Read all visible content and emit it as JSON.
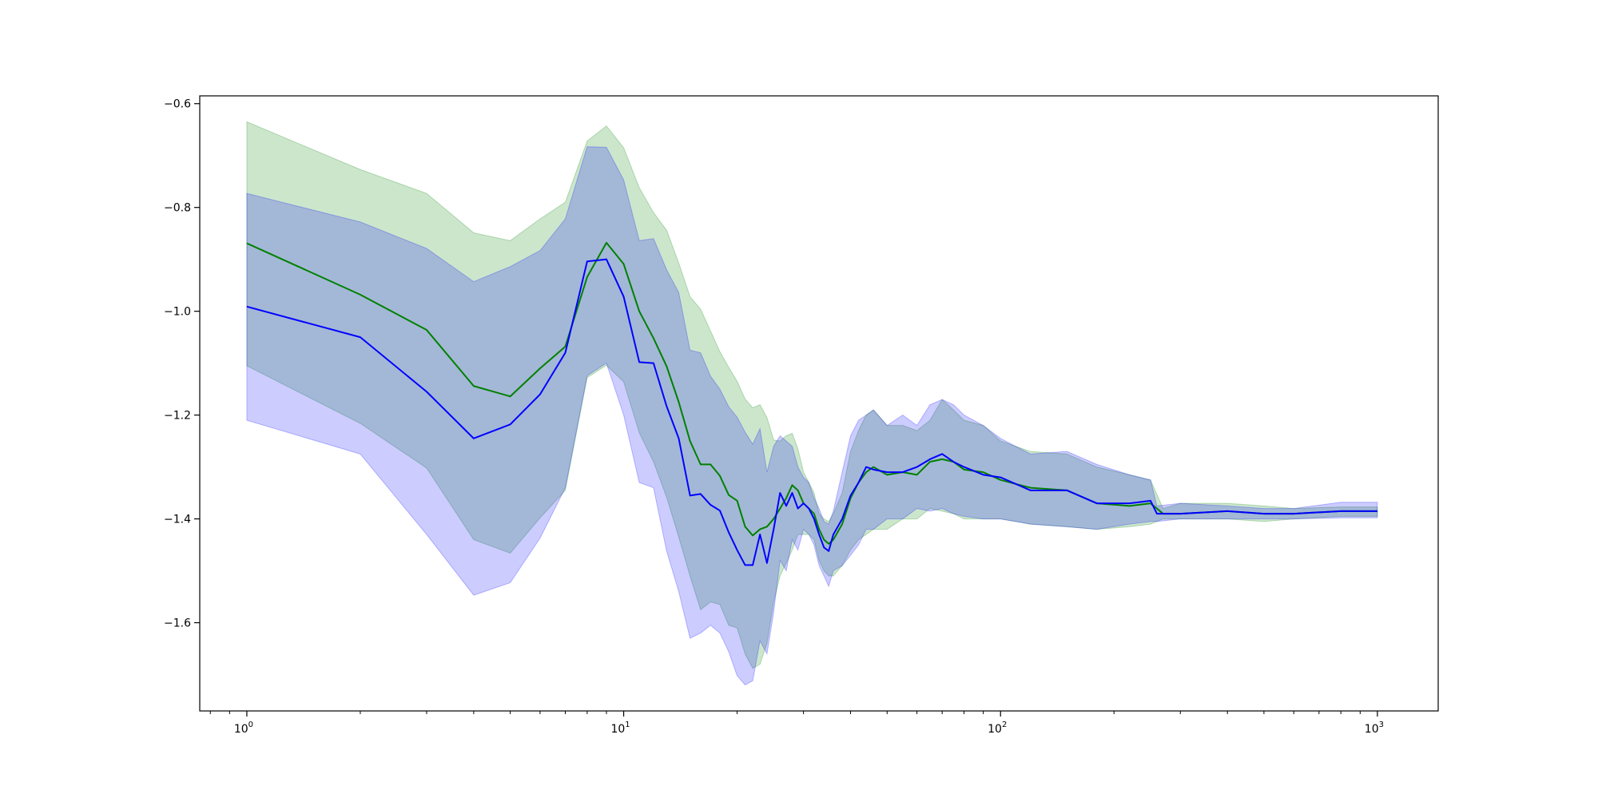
{
  "chart_data": {
    "type": "line",
    "x_scale": "log",
    "xlim": [
      0.75,
      1450
    ],
    "ylim": [
      -1.77,
      -0.585
    ],
    "grid": false,
    "legend": "none",
    "xticks": [
      {
        "value": 1,
        "base": "10",
        "exp": "0"
      },
      {
        "value": 10,
        "base": "10",
        "exp": "1"
      },
      {
        "value": 100,
        "base": "10",
        "exp": "2"
      },
      {
        "value": 1000,
        "base": "10",
        "exp": "3"
      }
    ],
    "yticks": [
      {
        "value": -0.6,
        "label": "−0.6"
      },
      {
        "value": -0.8,
        "label": "−0.8"
      },
      {
        "value": -1.0,
        "label": "−1.0"
      },
      {
        "value": -1.2,
        "label": "−1.2"
      },
      {
        "value": -1.4,
        "label": "−1.4"
      },
      {
        "value": -1.6,
        "label": "−1.6"
      }
    ],
    "series": [
      {
        "color": "#008000",
        "band_color": "#008000",
        "band_opacity": 0.2,
        "points": [
          [
            1,
            -0.869,
            -0.635,
            -1.105
          ],
          [
            2,
            -0.968,
            -0.727,
            -1.216
          ],
          [
            3,
            -1.036,
            -0.773,
            -1.302
          ],
          [
            4,
            -1.144,
            -0.849,
            -1.44
          ],
          [
            5,
            -1.164,
            -0.864,
            -1.466
          ],
          [
            6,
            -1.11,
            -0.822,
            -1.398
          ],
          [
            7,
            -1.068,
            -0.79,
            -1.345
          ],
          [
            8,
            -0.934,
            -0.672,
            -1.128
          ],
          [
            9,
            -0.868,
            -0.643,
            -1.104
          ],
          [
            10,
            -0.909,
            -0.685,
            -1.136
          ],
          [
            11,
            -1.0,
            -0.762,
            -1.234
          ],
          [
            12,
            -1.052,
            -0.81,
            -1.29
          ],
          [
            13,
            -1.106,
            -0.844,
            -1.358
          ],
          [
            14,
            -1.175,
            -0.907,
            -1.435
          ],
          [
            15,
            -1.25,
            -0.972,
            -1.51
          ],
          [
            16,
            -1.295,
            -0.996,
            -1.575
          ],
          [
            17,
            -1.295,
            -1.038,
            -1.56
          ],
          [
            18,
            -1.317,
            -1.078,
            -1.565
          ],
          [
            19,
            -1.354,
            -1.108,
            -1.605
          ],
          [
            20,
            -1.365,
            -1.135,
            -1.61
          ],
          [
            21,
            -1.415,
            -1.169,
            -1.66
          ],
          [
            22,
            -1.432,
            -1.186,
            -1.688
          ],
          [
            23,
            -1.42,
            -1.18,
            -1.68
          ],
          [
            24,
            -1.415,
            -1.205,
            -1.64
          ],
          [
            25,
            -1.4,
            -1.248,
            -1.56
          ],
          [
            26,
            -1.38,
            -1.25,
            -1.51
          ],
          [
            27,
            -1.36,
            -1.24,
            -1.485
          ],
          [
            28,
            -1.335,
            -1.235,
            -1.46
          ],
          [
            29,
            -1.345,
            -1.265,
            -1.43
          ],
          [
            30,
            -1.37,
            -1.31,
            -1.43
          ],
          [
            31,
            -1.38,
            -1.33,
            -1.43
          ],
          [
            32,
            -1.39,
            -1.35,
            -1.44
          ],
          [
            33,
            -1.42,
            -1.39,
            -1.48
          ],
          [
            34,
            -1.44,
            -1.4,
            -1.5
          ],
          [
            35,
            -1.448,
            -1.405,
            -1.51
          ],
          [
            36,
            -1.44,
            -1.39,
            -1.51
          ],
          [
            38,
            -1.41,
            -1.35,
            -1.49
          ],
          [
            40,
            -1.36,
            -1.27,
            -1.46
          ],
          [
            42,
            -1.33,
            -1.23,
            -1.44
          ],
          [
            44,
            -1.31,
            -1.2,
            -1.43
          ],
          [
            46,
            -1.3,
            -1.19,
            -1.42
          ],
          [
            50,
            -1.315,
            -1.22,
            -1.42
          ],
          [
            55,
            -1.31,
            -1.22,
            -1.4
          ],
          [
            60,
            -1.315,
            -1.23,
            -1.4
          ],
          [
            65,
            -1.29,
            -1.21,
            -1.38
          ],
          [
            70,
            -1.285,
            -1.17,
            -1.385
          ],
          [
            75,
            -1.29,
            -1.19,
            -1.39
          ],
          [
            80,
            -1.305,
            -1.21,
            -1.4
          ],
          [
            90,
            -1.31,
            -1.22,
            -1.4
          ],
          [
            100,
            -1.325,
            -1.25,
            -1.4
          ],
          [
            120,
            -1.34,
            -1.27,
            -1.41
          ],
          [
            150,
            -1.345,
            -1.275,
            -1.415
          ],
          [
            180,
            -1.37,
            -1.3,
            -1.42
          ],
          [
            220,
            -1.375,
            -1.315,
            -1.415
          ],
          [
            250,
            -1.37,
            -1.325,
            -1.41
          ],
          [
            270,
            -1.39,
            -1.38,
            -1.4
          ],
          [
            300,
            -1.39,
            -1.37,
            -1.4
          ],
          [
            400,
            -1.385,
            -1.37,
            -1.4
          ],
          [
            500,
            -1.39,
            -1.375,
            -1.405
          ],
          [
            600,
            -1.39,
            -1.38,
            -1.4
          ],
          [
            800,
            -1.385,
            -1.377,
            -1.395
          ],
          [
            1000,
            -1.385,
            -1.377,
            -1.395
          ]
        ]
      },
      {
        "color": "#0000ff",
        "band_color": "#0000ff",
        "band_opacity": 0.2,
        "points": [
          [
            1,
            -0.991,
            -0.773,
            -1.21
          ],
          [
            2,
            -1.05,
            -0.828,
            -1.275
          ],
          [
            3,
            -1.155,
            -0.879,
            -1.43
          ],
          [
            4,
            -1.245,
            -0.943,
            -1.547
          ],
          [
            5,
            -1.218,
            -0.914,
            -1.523
          ],
          [
            6,
            -1.16,
            -0.883,
            -1.437
          ],
          [
            7,
            -1.08,
            -0.822,
            -1.34
          ],
          [
            8,
            -0.904,
            -0.683,
            -1.124
          ],
          [
            9,
            -0.9,
            -0.684,
            -1.1
          ],
          [
            10,
            -0.972,
            -0.747,
            -1.2
          ],
          [
            11,
            -1.098,
            -0.864,
            -1.33
          ],
          [
            12,
            -1.1,
            -0.86,
            -1.34
          ],
          [
            13,
            -1.183,
            -0.92,
            -1.462
          ],
          [
            14,
            -1.245,
            -0.964,
            -1.54
          ],
          [
            15,
            -1.355,
            -1.075,
            -1.63
          ],
          [
            16,
            -1.352,
            -1.08,
            -1.62
          ],
          [
            17,
            -1.373,
            -1.125,
            -1.605
          ],
          [
            18,
            -1.384,
            -1.15,
            -1.62
          ],
          [
            19,
            -1.426,
            -1.184,
            -1.656
          ],
          [
            20,
            -1.46,
            -1.204,
            -1.702
          ],
          [
            21,
            -1.489,
            -1.233,
            -1.72
          ],
          [
            22,
            -1.489,
            -1.256,
            -1.712
          ],
          [
            23,
            -1.43,
            -1.226,
            -1.635
          ],
          [
            24,
            -1.485,
            -1.31,
            -1.66
          ],
          [
            25,
            -1.42,
            -1.26,
            -1.58
          ],
          [
            26,
            -1.35,
            -1.24,
            -1.48
          ],
          [
            27,
            -1.375,
            -1.25,
            -1.5
          ],
          [
            28,
            -1.35,
            -1.26,
            -1.44
          ],
          [
            29,
            -1.38,
            -1.3,
            -1.46
          ],
          [
            30,
            -1.37,
            -1.32,
            -1.42
          ],
          [
            31,
            -1.38,
            -1.33,
            -1.43
          ],
          [
            32,
            -1.4,
            -1.36,
            -1.45
          ],
          [
            33,
            -1.43,
            -1.38,
            -1.49
          ],
          [
            34,
            -1.455,
            -1.405,
            -1.51
          ],
          [
            35,
            -1.462,
            -1.41,
            -1.53
          ],
          [
            36,
            -1.43,
            -1.385,
            -1.5
          ],
          [
            38,
            -1.4,
            -1.31,
            -1.49
          ],
          [
            40,
            -1.355,
            -1.24,
            -1.47
          ],
          [
            42,
            -1.33,
            -1.21,
            -1.45
          ],
          [
            44,
            -1.3,
            -1.2,
            -1.42
          ],
          [
            46,
            -1.305,
            -1.19,
            -1.42
          ],
          [
            50,
            -1.31,
            -1.22,
            -1.4
          ],
          [
            55,
            -1.31,
            -1.2,
            -1.4
          ],
          [
            60,
            -1.3,
            -1.22,
            -1.38
          ],
          [
            65,
            -1.285,
            -1.18,
            -1.385
          ],
          [
            70,
            -1.275,
            -1.17,
            -1.38
          ],
          [
            75,
            -1.29,
            -1.18,
            -1.39
          ],
          [
            80,
            -1.3,
            -1.2,
            -1.395
          ],
          [
            90,
            -1.315,
            -1.22,
            -1.4
          ],
          [
            100,
            -1.32,
            -1.245,
            -1.4
          ],
          [
            120,
            -1.345,
            -1.275,
            -1.41
          ],
          [
            150,
            -1.345,
            -1.27,
            -1.415
          ],
          [
            180,
            -1.37,
            -1.295,
            -1.42
          ],
          [
            220,
            -1.37,
            -1.315,
            -1.41
          ],
          [
            250,
            -1.365,
            -1.325,
            -1.405
          ],
          [
            260,
            -1.39,
            -1.375,
            -1.405
          ],
          [
            300,
            -1.39,
            -1.37,
            -1.4
          ],
          [
            400,
            -1.385,
            -1.375,
            -1.4
          ],
          [
            500,
            -1.39,
            -1.38,
            -1.4
          ],
          [
            600,
            -1.39,
            -1.38,
            -1.4
          ],
          [
            800,
            -1.385,
            -1.368,
            -1.398
          ],
          [
            1000,
            -1.385,
            -1.368,
            -1.398
          ]
        ]
      }
    ]
  }
}
